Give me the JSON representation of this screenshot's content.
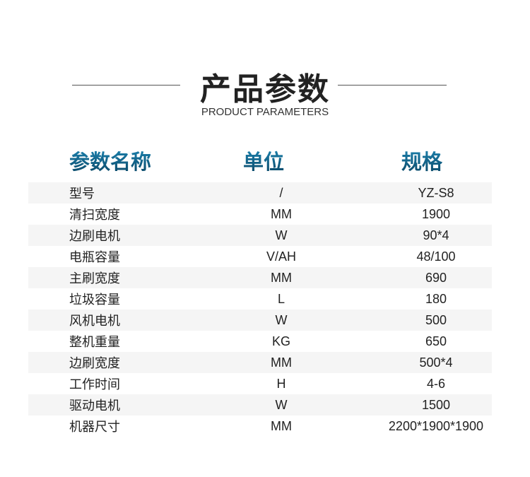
{
  "title": "产品参数",
  "subtitle": "PRODUCT PARAMETERS",
  "headers": [
    "参数名称",
    "单位",
    "规格"
  ],
  "rows": [
    [
      "型号",
      "/",
      "YZ-S8"
    ],
    [
      "清扫宽度",
      "MM",
      "1900"
    ],
    [
      "边刷电机",
      "W",
      "90*4"
    ],
    [
      "电瓶容量",
      "V/AH",
      "48/100"
    ],
    [
      "主刷宽度",
      "MM",
      "690"
    ],
    [
      "垃圾容量",
      "L",
      "180"
    ],
    [
      "风机电机",
      "W",
      "500"
    ],
    [
      "整机重量",
      "KG",
      "650"
    ],
    [
      "边刷宽度",
      "MM",
      "500*4"
    ],
    [
      "工作时间",
      "H",
      "4-6"
    ],
    [
      "驱动电机",
      "W",
      "1500"
    ],
    [
      "机器尺寸",
      "MM",
      "2200*1900*1900"
    ]
  ]
}
